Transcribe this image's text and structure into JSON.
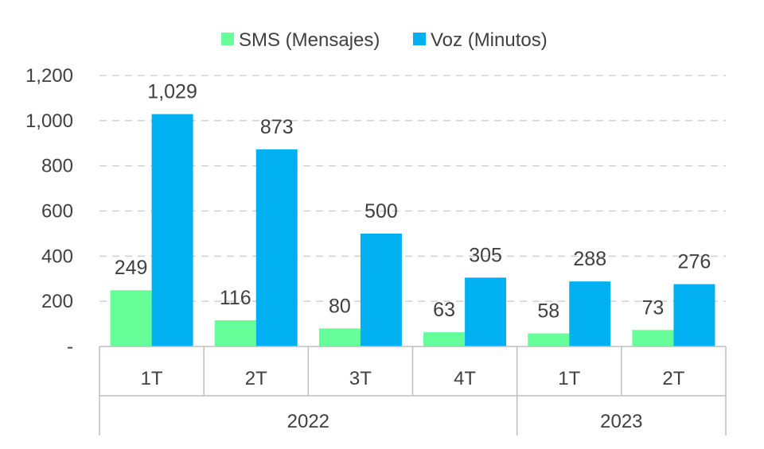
{
  "chart_data": {
    "type": "bar",
    "groups": [
      {
        "label": "2022",
        "categories": [
          "1T",
          "2T",
          "3T",
          "4T"
        ]
      },
      {
        "label": "2023",
        "categories": [
          "1T",
          "2T"
        ]
      }
    ],
    "series": [
      {
        "name": "SMS (Mensajes)",
        "color": "#66ff99",
        "values": [
          249,
          116,
          80,
          63,
          58,
          73
        ]
      },
      {
        "name": "Voz (Minutos)",
        "color": "#00b0f0",
        "values": [
          1029,
          873,
          500,
          305,
          288,
          276
        ]
      }
    ],
    "data_labels": {
      "sms": [
        "249",
        "116",
        "80",
        "63",
        "58",
        "73"
      ],
      "voz": [
        "1,029",
        "873",
        "500",
        "305",
        "288",
        "276"
      ]
    },
    "yticks": [
      {
        "value": 0,
        "label": "-"
      },
      {
        "value": 200,
        "label": "200"
      },
      {
        "value": 400,
        "label": "400"
      },
      {
        "value": 600,
        "label": "600"
      },
      {
        "value": 800,
        "label": "800"
      },
      {
        "value": 1000,
        "label": "1,000"
      },
      {
        "value": 1200,
        "label": "1,200"
      }
    ],
    "ylim": [
      0,
      1200
    ],
    "grid": true,
    "legend_position": "top-center"
  }
}
